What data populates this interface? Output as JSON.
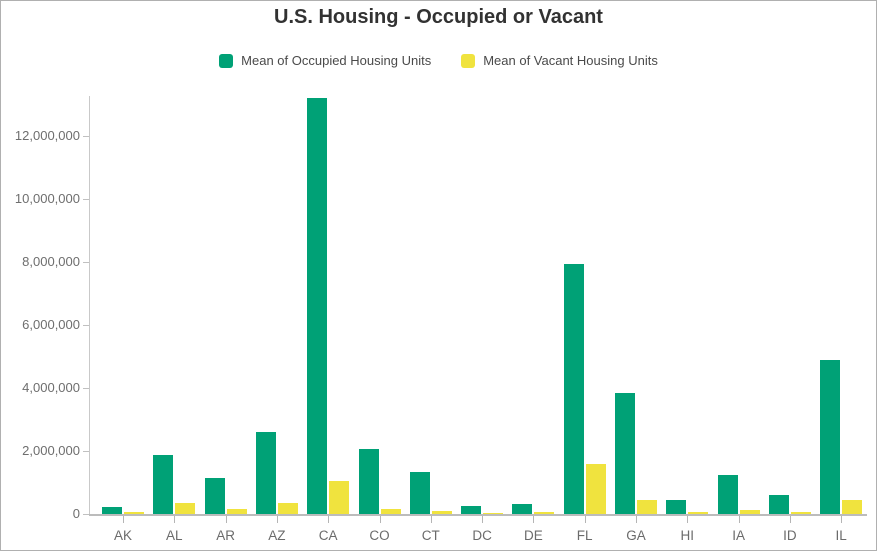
{
  "title": "U.S. Housing - Occupied or Vacant",
  "legend": [
    {
      "label": "Mean of Occupied Housing Units",
      "color": "#00A176"
    },
    {
      "label": "Mean of Vacant Housing Units",
      "color": "#F0E33E"
    }
  ],
  "chart_data": {
    "type": "bar",
    "title": "U.S. Housing - Occupied or Vacant",
    "categories": [
      "AK",
      "AL",
      "AR",
      "AZ",
      "CA",
      "CO",
      "CT",
      "DC",
      "DE",
      "FL",
      "GA",
      "HI",
      "IA",
      "ID",
      "IL"
    ],
    "series": [
      {
        "name": "Mean of Occupied Housing Units",
        "color": "#00A176",
        "values": [
          220000,
          1870000,
          1130000,
          2600000,
          13220000,
          2070000,
          1340000,
          240000,
          320000,
          7950000,
          3840000,
          430000,
          1250000,
          600000,
          4880000
        ]
      },
      {
        "name": "Mean of Vacant Housing Units",
        "color": "#F0E33E",
        "values": [
          60000,
          350000,
          170000,
          360000,
          1060000,
          170000,
          100000,
          30000,
          50000,
          1590000,
          450000,
          65000,
          120000,
          70000,
          450000
        ]
      }
    ],
    "xlabel": "",
    "ylabel": "",
    "ylim": [
      0,
      13270000
    ],
    "ytick_interval": 2000000,
    "ytick_labels": [
      "0",
      "2,000,000",
      "4,000,000",
      "6,000,000",
      "8,000,000",
      "10,000,000",
      "12,000,000"
    ],
    "grid": false,
    "legend_position": "top"
  }
}
